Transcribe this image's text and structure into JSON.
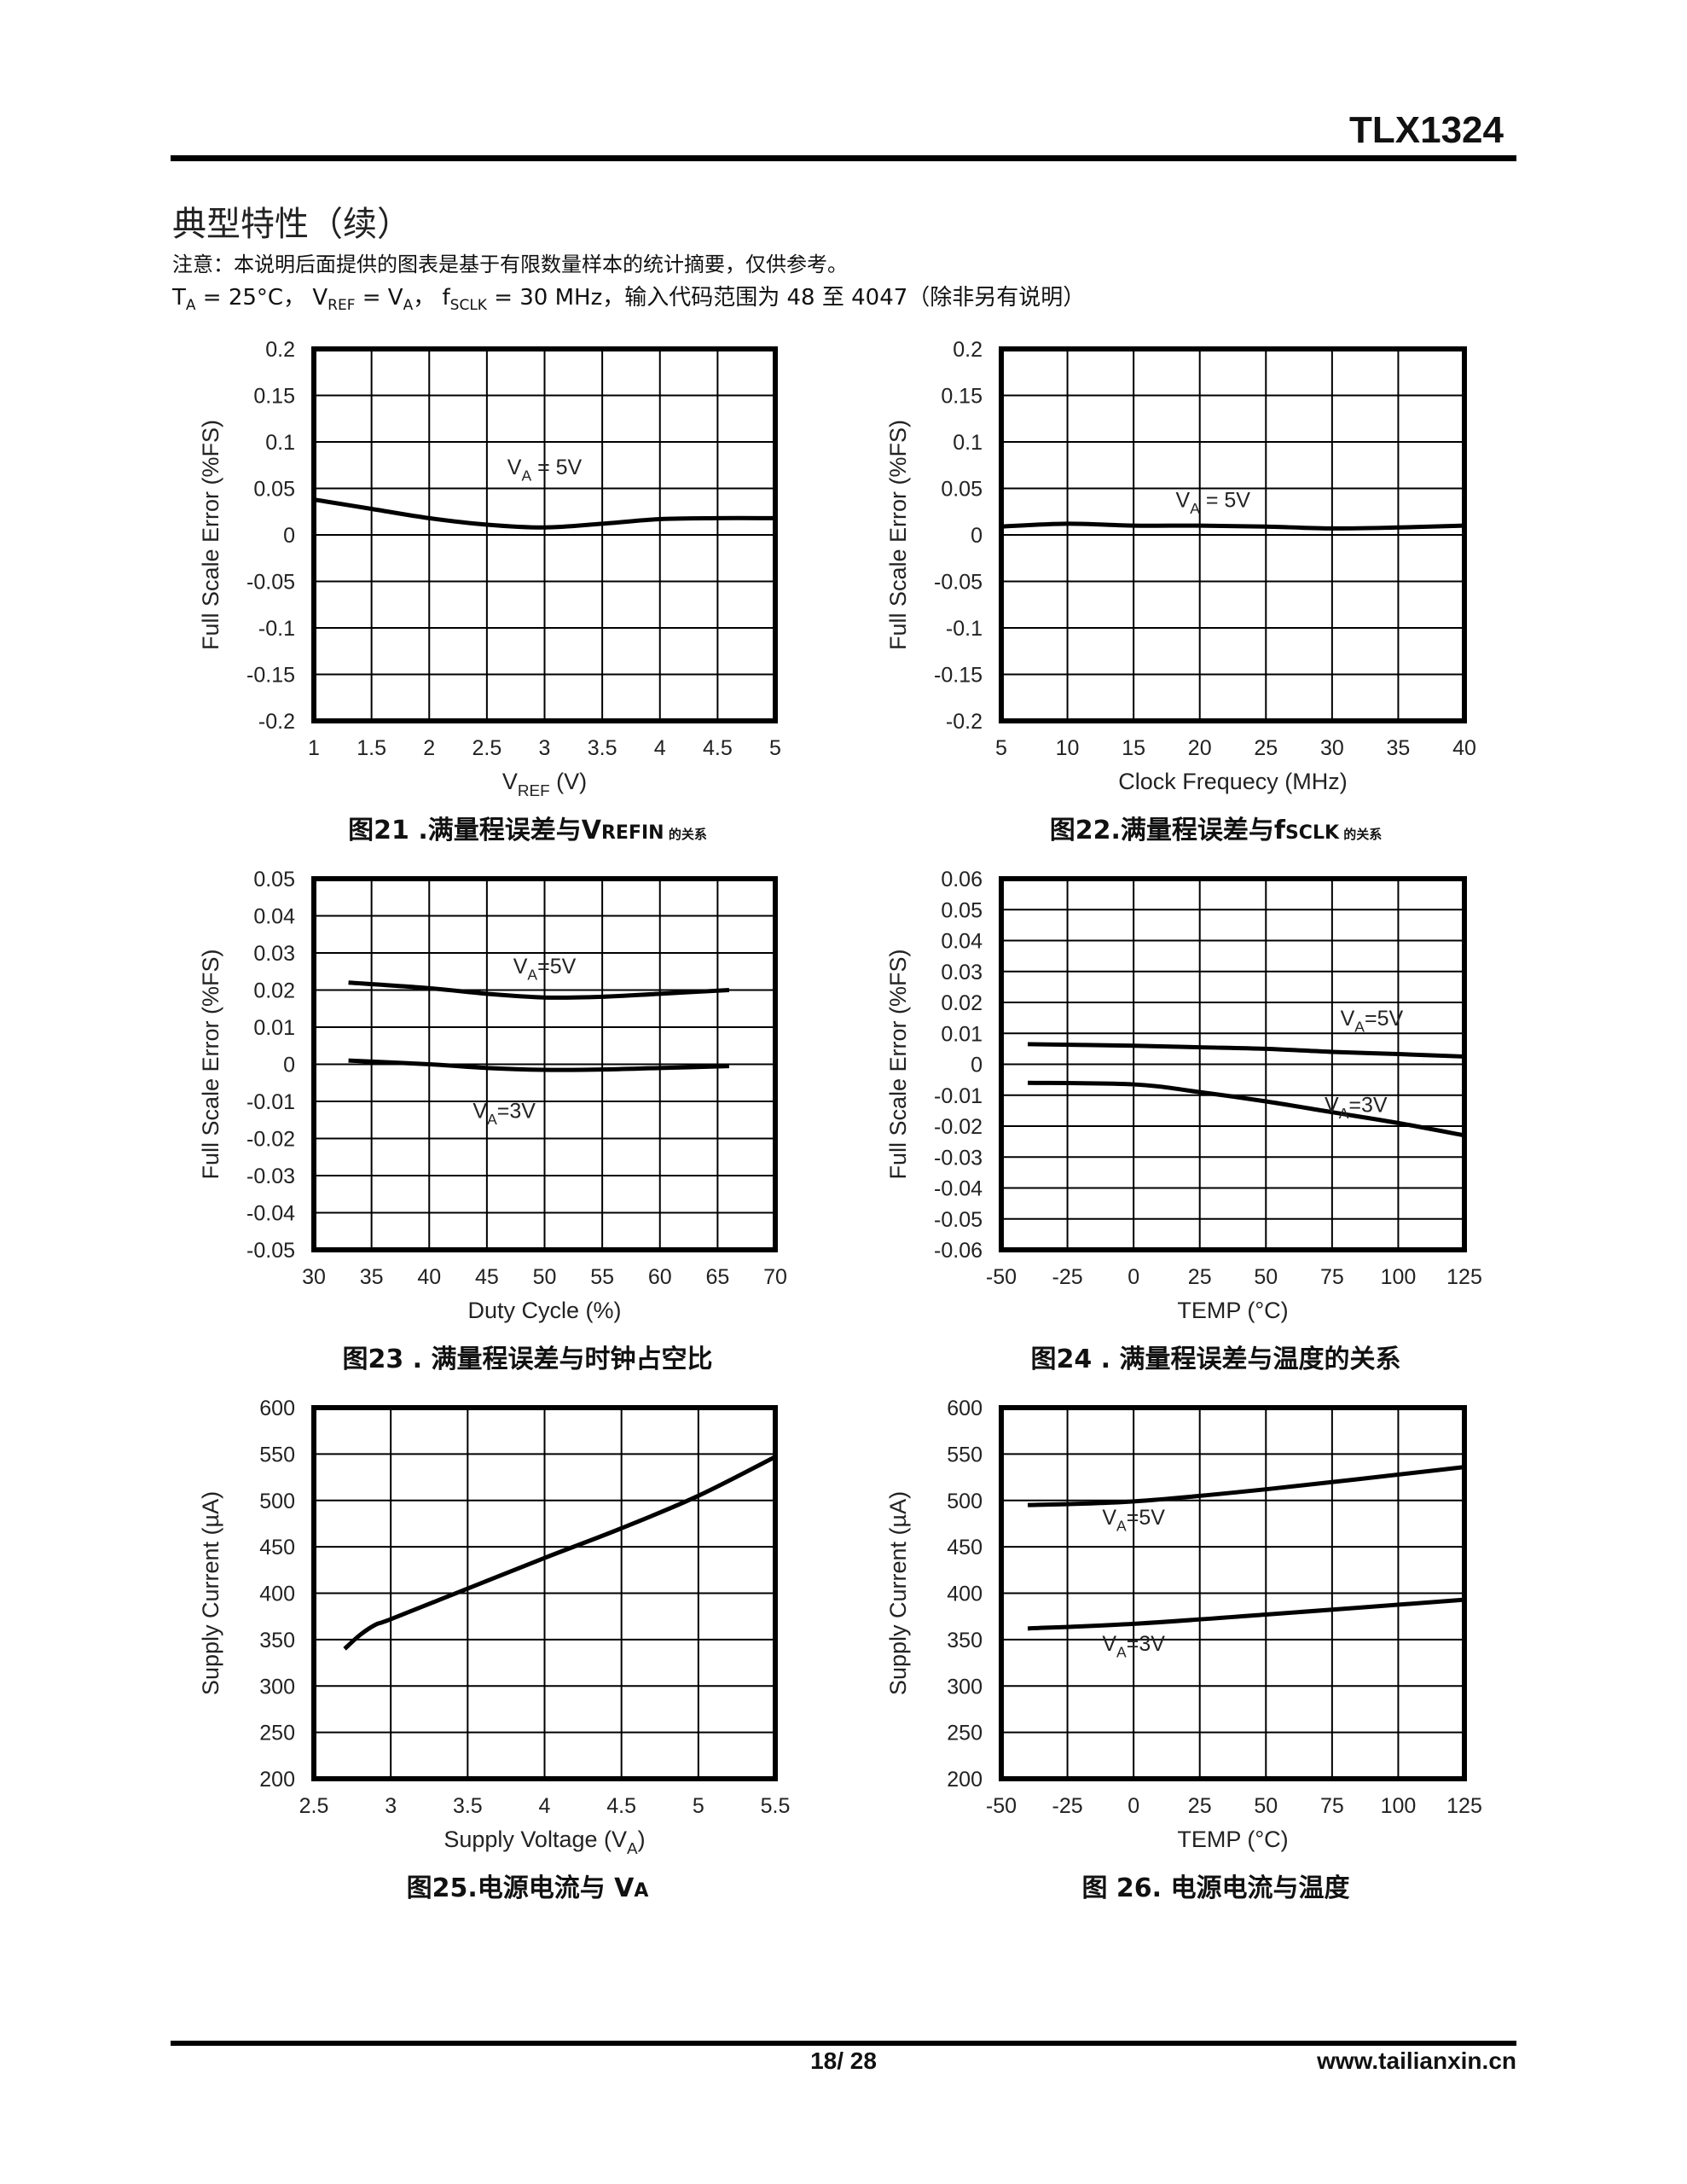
{
  "header": {
    "doc_id": "TLX1324"
  },
  "section": {
    "title": "典型特性（续）",
    "note": "注意：本说明后面提供的图表是基于有限数量样本的统计摘要，仅供参考。",
    "conditions": [
      {
        "t": "T"
      },
      {
        "t": "A",
        "sub": true
      },
      {
        "t": " = 25°C， V"
      },
      {
        "t": "REF",
        "sub": true
      },
      {
        "t": " = V"
      },
      {
        "t": "A",
        "sub": true
      },
      {
        "t": "， f"
      },
      {
        "t": "SCLK",
        "sub": true
      },
      {
        "t": " = 30 MHz，输入代码范围为 48 至 4047（除非另有说明）"
      }
    ]
  },
  "captions": [
    {
      "main": "图21 .满量程误差与V",
      "sub": "REFIN",
      "tail": " 的关系"
    },
    {
      "main": "图22.满量程误差与f",
      "sub": "SCLK",
      "tail": " 的关系"
    },
    {
      "main": "图23 . 满量程误差与时钟占空比",
      "sub": "",
      "tail": ""
    },
    {
      "main": "图24 . 满量程误差与温度的关系",
      "sub": "",
      "tail": ""
    },
    {
      "main": "图25.电源电流与 V",
      "sub": "A",
      "tail": ""
    },
    {
      "main": "图 26. 电源电流与温度",
      "sub": "",
      "tail": ""
    }
  ],
  "footer": {
    "page": "18/ 28",
    "website": "www.tailianxin.cn"
  },
  "chart_data": [
    {
      "type": "line",
      "xlim": [
        1,
        5
      ],
      "ylim": [
        -0.2,
        0.2
      ],
      "xticks": [
        "1",
        "1.5",
        "2",
        "2.5",
        "3",
        "3.5",
        "4",
        "4.5",
        "5"
      ],
      "yticks": [
        "-0.2",
        "-0.15",
        "-0.1",
        "-0.05",
        "0",
        "0.05",
        "0.1",
        "0.15",
        "0.2"
      ],
      "ylabel": "Full Scale Error (%FS)",
      "xlabel": [
        {
          "t": "V"
        },
        {
          "t": "REF",
          "sub": true
        },
        {
          "t": " (V)"
        }
      ],
      "series": [
        {
          "name": "VA = 5V",
          "x": [
            1,
            1.5,
            2,
            2.5,
            3,
            3.5,
            4,
            4.5,
            5
          ],
          "y": [
            0.038,
            0.028,
            0.018,
            0.011,
            0.008,
            0.012,
            0.017,
            0.018,
            0.018
          ],
          "label": [
            {
              "t": "V"
            },
            {
              "t": "A",
              "sub": true
            },
            {
              "t": " = 5V"
            }
          ],
          "label_at": [
            3.0,
            0.065
          ]
        }
      ]
    },
    {
      "type": "line",
      "xlim": [
        5,
        40
      ],
      "ylim": [
        -0.2,
        0.2
      ],
      "xticks": [
        "5",
        "10",
        "15",
        "20",
        "25",
        "30",
        "35",
        "40"
      ],
      "yticks": [
        "-0.2",
        "-0.15",
        "-0.1",
        "-0.05",
        "0",
        "0.05",
        "0.1",
        "0.15",
        "0.2"
      ],
      "ylabel": "Full Scale Error (%FS)",
      "xlabel": [
        {
          "t": "Clock Frequecy (MHz)"
        }
      ],
      "series": [
        {
          "name": "VA = 5V",
          "x": [
            5,
            10,
            15,
            20,
            25,
            30,
            35,
            40
          ],
          "y": [
            0.009,
            0.012,
            0.01,
            0.01,
            0.009,
            0.007,
            0.008,
            0.01
          ],
          "label": [
            {
              "t": "V"
            },
            {
              "t": "A",
              "sub": true
            },
            {
              "t": " = 5V"
            }
          ],
          "label_at": [
            21,
            0.03
          ]
        }
      ]
    },
    {
      "type": "line",
      "xlim": [
        30,
        70
      ],
      "ylim": [
        -0.05,
        0.05
      ],
      "xticks": [
        "30",
        "35",
        "40",
        "45",
        "50",
        "55",
        "60",
        "65",
        "70"
      ],
      "yticks": [
        "-0.05",
        "-0.04",
        "-0.03",
        "-0.02",
        "-0.01",
        "0",
        "0.01",
        "0.02",
        "0.03",
        "0.04",
        "0.05"
      ],
      "ylabel": "Full Scale Error (%FS)",
      "xlabel": [
        {
          "t": "Duty Cycle (%)"
        }
      ],
      "series": [
        {
          "name": "VA=5V",
          "x": [
            33,
            40,
            45,
            50,
            55,
            60,
            66
          ],
          "y": [
            0.022,
            0.0205,
            0.019,
            0.018,
            0.0182,
            0.019,
            0.02
          ],
          "label": [
            {
              "t": "V"
            },
            {
              "t": "A",
              "sub": true
            },
            {
              "t": "=5V"
            }
          ],
          "label_at": [
            50,
            0.0245
          ]
        },
        {
          "name": "VA=3V",
          "x": [
            33,
            40,
            45,
            50,
            55,
            60,
            66
          ],
          "y": [
            0.001,
            0,
            -0.001,
            -0.0015,
            -0.0014,
            -0.001,
            -0.0005
          ],
          "label": [
            {
              "t": "V"
            },
            {
              "t": "A",
              "sub": true
            },
            {
              "t": "=3V"
            }
          ],
          "label_at": [
            46.5,
            -0.0145
          ]
        }
      ]
    },
    {
      "type": "line",
      "xlim": [
        -50,
        125
      ],
      "ylim": [
        -0.06,
        0.06
      ],
      "xticks": [
        "-50",
        "-25",
        "0",
        "25",
        "50",
        "75",
        "100",
        "125"
      ],
      "yticks": [
        "-0.06",
        "-0.05",
        "-0.04",
        "-0.03",
        "-0.02",
        "-0.01",
        "0",
        "0.01",
        "0.02",
        "0.03",
        "0.04",
        "0.05",
        "0.06"
      ],
      "ylabel": "Full Scale Error (%FS)",
      "xlabel": [
        {
          "t": "TEMP (°C)"
        }
      ],
      "series": [
        {
          "name": "VA=5V",
          "x": [
            -40,
            0,
            25,
            50,
            75,
            100,
            125
          ],
          "y": [
            0.0065,
            0.006,
            0.0055,
            0.005,
            0.004,
            0.0033,
            0.0025
          ],
          "label": [
            {
              "t": "V"
            },
            {
              "t": "A",
              "sub": true
            },
            {
              "t": "=5V"
            }
          ],
          "label_at": [
            90,
            0.0125
          ]
        },
        {
          "name": "VA=3V",
          "x": [
            -40,
            0,
            25,
            50,
            75,
            100,
            125
          ],
          "y": [
            -0.006,
            -0.0065,
            -0.009,
            -0.012,
            -0.0155,
            -0.019,
            -0.023
          ],
          "label": [
            {
              "t": "V"
            },
            {
              "t": "A",
              "sub": true
            },
            {
              "t": "=3V"
            }
          ],
          "label_at": [
            84,
            -0.0155
          ]
        }
      ]
    },
    {
      "type": "line",
      "xlim": [
        2.5,
        5.5
      ],
      "ylim": [
        200,
        600
      ],
      "xticks": [
        "2.5",
        "3",
        "3.5",
        "4",
        "4.5",
        "5",
        "5.5"
      ],
      "yticks": [
        "200",
        "250",
        "300",
        "350",
        "400",
        "450",
        "500",
        "550",
        "600"
      ],
      "ylabel": "Supply Current (µA)",
      "xlabel": [
        {
          "t": "Supply Voltage (V"
        },
        {
          "t": "A",
          "sub": true
        },
        {
          "t": ")"
        }
      ],
      "series": [
        {
          "name": "VA",
          "x": [
            2.7,
            2.8,
            2.9,
            3,
            3.5,
            4,
            4.5,
            5,
            5.5
          ],
          "y": [
            340,
            355,
            366,
            372,
            405,
            438,
            470,
            505,
            547
          ]
        }
      ]
    },
    {
      "type": "line",
      "xlim": [
        -50,
        125
      ],
      "ylim": [
        200,
        600
      ],
      "xticks": [
        "-50",
        "-25",
        "0",
        "25",
        "50",
        "75",
        "100",
        "125"
      ],
      "yticks": [
        "200",
        "250",
        "300",
        "350",
        "400",
        "450",
        "500",
        "550",
        "600"
      ],
      "ylabel": "Supply Current (µA)",
      "xlabel": [
        {
          "t": "TEMP (°C)"
        }
      ],
      "series": [
        {
          "name": "VA=5V",
          "x": [
            -40,
            0,
            50,
            125
          ],
          "y": [
            495,
            499,
            512,
            536
          ],
          "label": [
            {
              "t": "V"
            },
            {
              "t": "A",
              "sub": true
            },
            {
              "t": "=5V"
            }
          ],
          "label_at": [
            0,
            474
          ]
        },
        {
          "name": "VA=3V",
          "x": [
            -40,
            0,
            50,
            125
          ],
          "y": [
            362,
            367,
            377,
            393
          ],
          "label": [
            {
              "t": "V"
            },
            {
              "t": "A",
              "sub": true
            },
            {
              "t": "=3V"
            }
          ],
          "label_at": [
            0,
            338
          ]
        }
      ]
    }
  ]
}
